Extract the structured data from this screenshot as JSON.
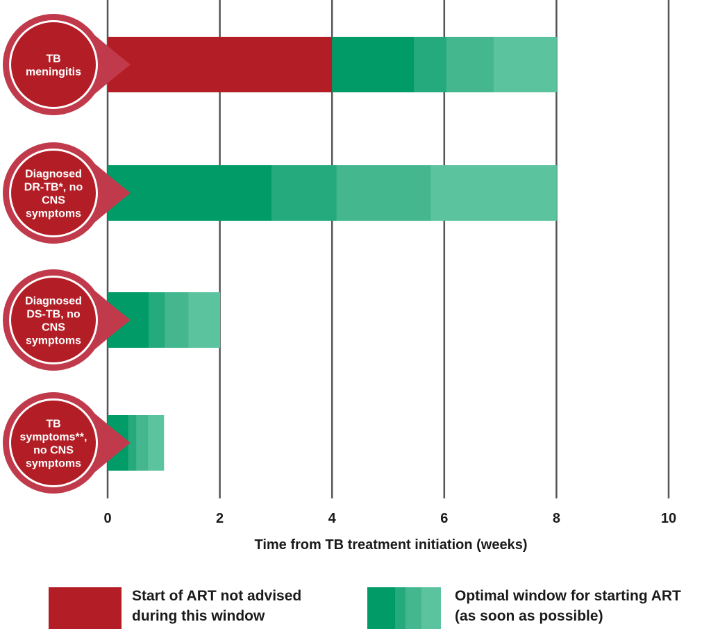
{
  "chart_data": {
    "type": "bar",
    "orientation": "horizontal",
    "stacked": true,
    "title": "",
    "xlabel": "Time from TB treatment initiation (weeks)",
    "ylabel": "",
    "xlim": [
      0,
      10
    ],
    "xticks": [
      "0",
      "2",
      "4",
      "6",
      "8",
      "10"
    ],
    "grid": true,
    "legend_position": "bottom",
    "categories": [
      [
        "TB",
        "meningitis"
      ],
      [
        "Diagnosed",
        "DR-TB*, no",
        "CNS",
        "symptoms"
      ],
      [
        "Diagnosed",
        "DS-TB, no",
        "CNS",
        "symptoms"
      ],
      [
        "TB",
        "symptoms**,",
        "no CNS",
        "symptoms"
      ]
    ],
    "series": [
      {
        "name": "Start of ART not advised during this window",
        "color": "#b31e26",
        "values": [
          [
            0,
            4
          ],
          null,
          null,
          null
        ]
      },
      {
        "name": "Optimal window for starting ART (as soon as possible)",
        "colors": [
          "#009b66",
          "#25aa7d",
          "#45b78f",
          "#5bc39e"
        ],
        "values": [
          [
            4,
            8
          ],
          [
            0,
            8
          ],
          [
            0,
            2
          ],
          [
            0,
            1
          ]
        ]
      }
    ],
    "badge_color": "#c03a4b"
  },
  "legend": {
    "not_advised": {
      "label_line1": "Start of ART not advised",
      "label_line2": "during this window",
      "color": "#b31e26"
    },
    "optimal": {
      "label_line1": "Optimal window for starting ART",
      "label_line2": "(as soon as possible)",
      "colors": [
        "#009b66",
        "#25aa7d",
        "#45b78f",
        "#5bc39e"
      ]
    }
  }
}
